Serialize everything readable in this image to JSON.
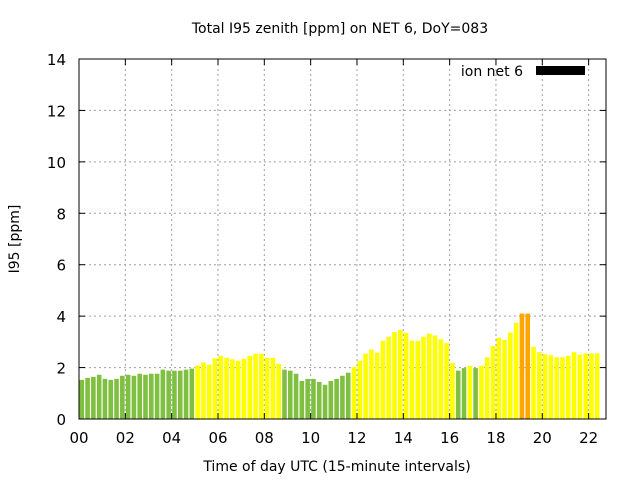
{
  "chart_data": {
    "type": "bar",
    "title": "Total I95 zenith [ppm] on NET 6, DoY=083",
    "xlabel": "Time of day UTC (15-minute intervals)",
    "ylabel": "I95 [ppm]",
    "legend": {
      "label": "ion net 6",
      "color": "#000000",
      "placement": "top-right"
    },
    "xlim": [
      0,
      22.75
    ],
    "ylim": [
      0,
      14
    ],
    "grid": true,
    "x_ticks": [
      "00",
      "02",
      "04",
      "06",
      "08",
      "10",
      "12",
      "14",
      "16",
      "18",
      "20",
      "22"
    ],
    "y_ticks": [
      "0",
      "2",
      "4",
      "6",
      "8",
      "10",
      "12",
      "14"
    ],
    "interval_hours": 0.25,
    "colors": {
      "low": "#80c040",
      "mid": "#ffff00",
      "high": "#ffa500"
    },
    "thresholds": [
      2,
      4
    ],
    "values": [
      1.52,
      1.6,
      1.64,
      1.72,
      1.56,
      1.52,
      1.56,
      1.68,
      1.72,
      1.68,
      1.76,
      1.72,
      1.76,
      1.76,
      1.92,
      1.88,
      1.88,
      1.88,
      1.92,
      1.96,
      2.08,
      2.2,
      2.12,
      2.36,
      2.46,
      2.38,
      2.32,
      2.26,
      2.34,
      2.46,
      2.54,
      2.54,
      2.38,
      2.38,
      2.15,
      1.92,
      1.88,
      1.76,
      1.48,
      1.56,
      1.56,
      1.44,
      1.33,
      1.48,
      1.56,
      1.68,
      1.8,
      2.02,
      2.26,
      2.54,
      2.7,
      2.58,
      3.04,
      3.2,
      3.38,
      3.46,
      3.35,
      3.04,
      3.04,
      3.2,
      3.32,
      3.25,
      3.1,
      2.95,
      2.18,
      1.88,
      1.98,
      2.07,
      1.98,
      2.07,
      2.4,
      2.84,
      3.16,
      3.08,
      3.36,
      3.74,
      4.1,
      4.1,
      2.8,
      2.6,
      2.52,
      2.48,
      2.4,
      2.4,
      2.46,
      2.6,
      2.5,
      2.55,
      2.55,
      2.55
    ]
  }
}
